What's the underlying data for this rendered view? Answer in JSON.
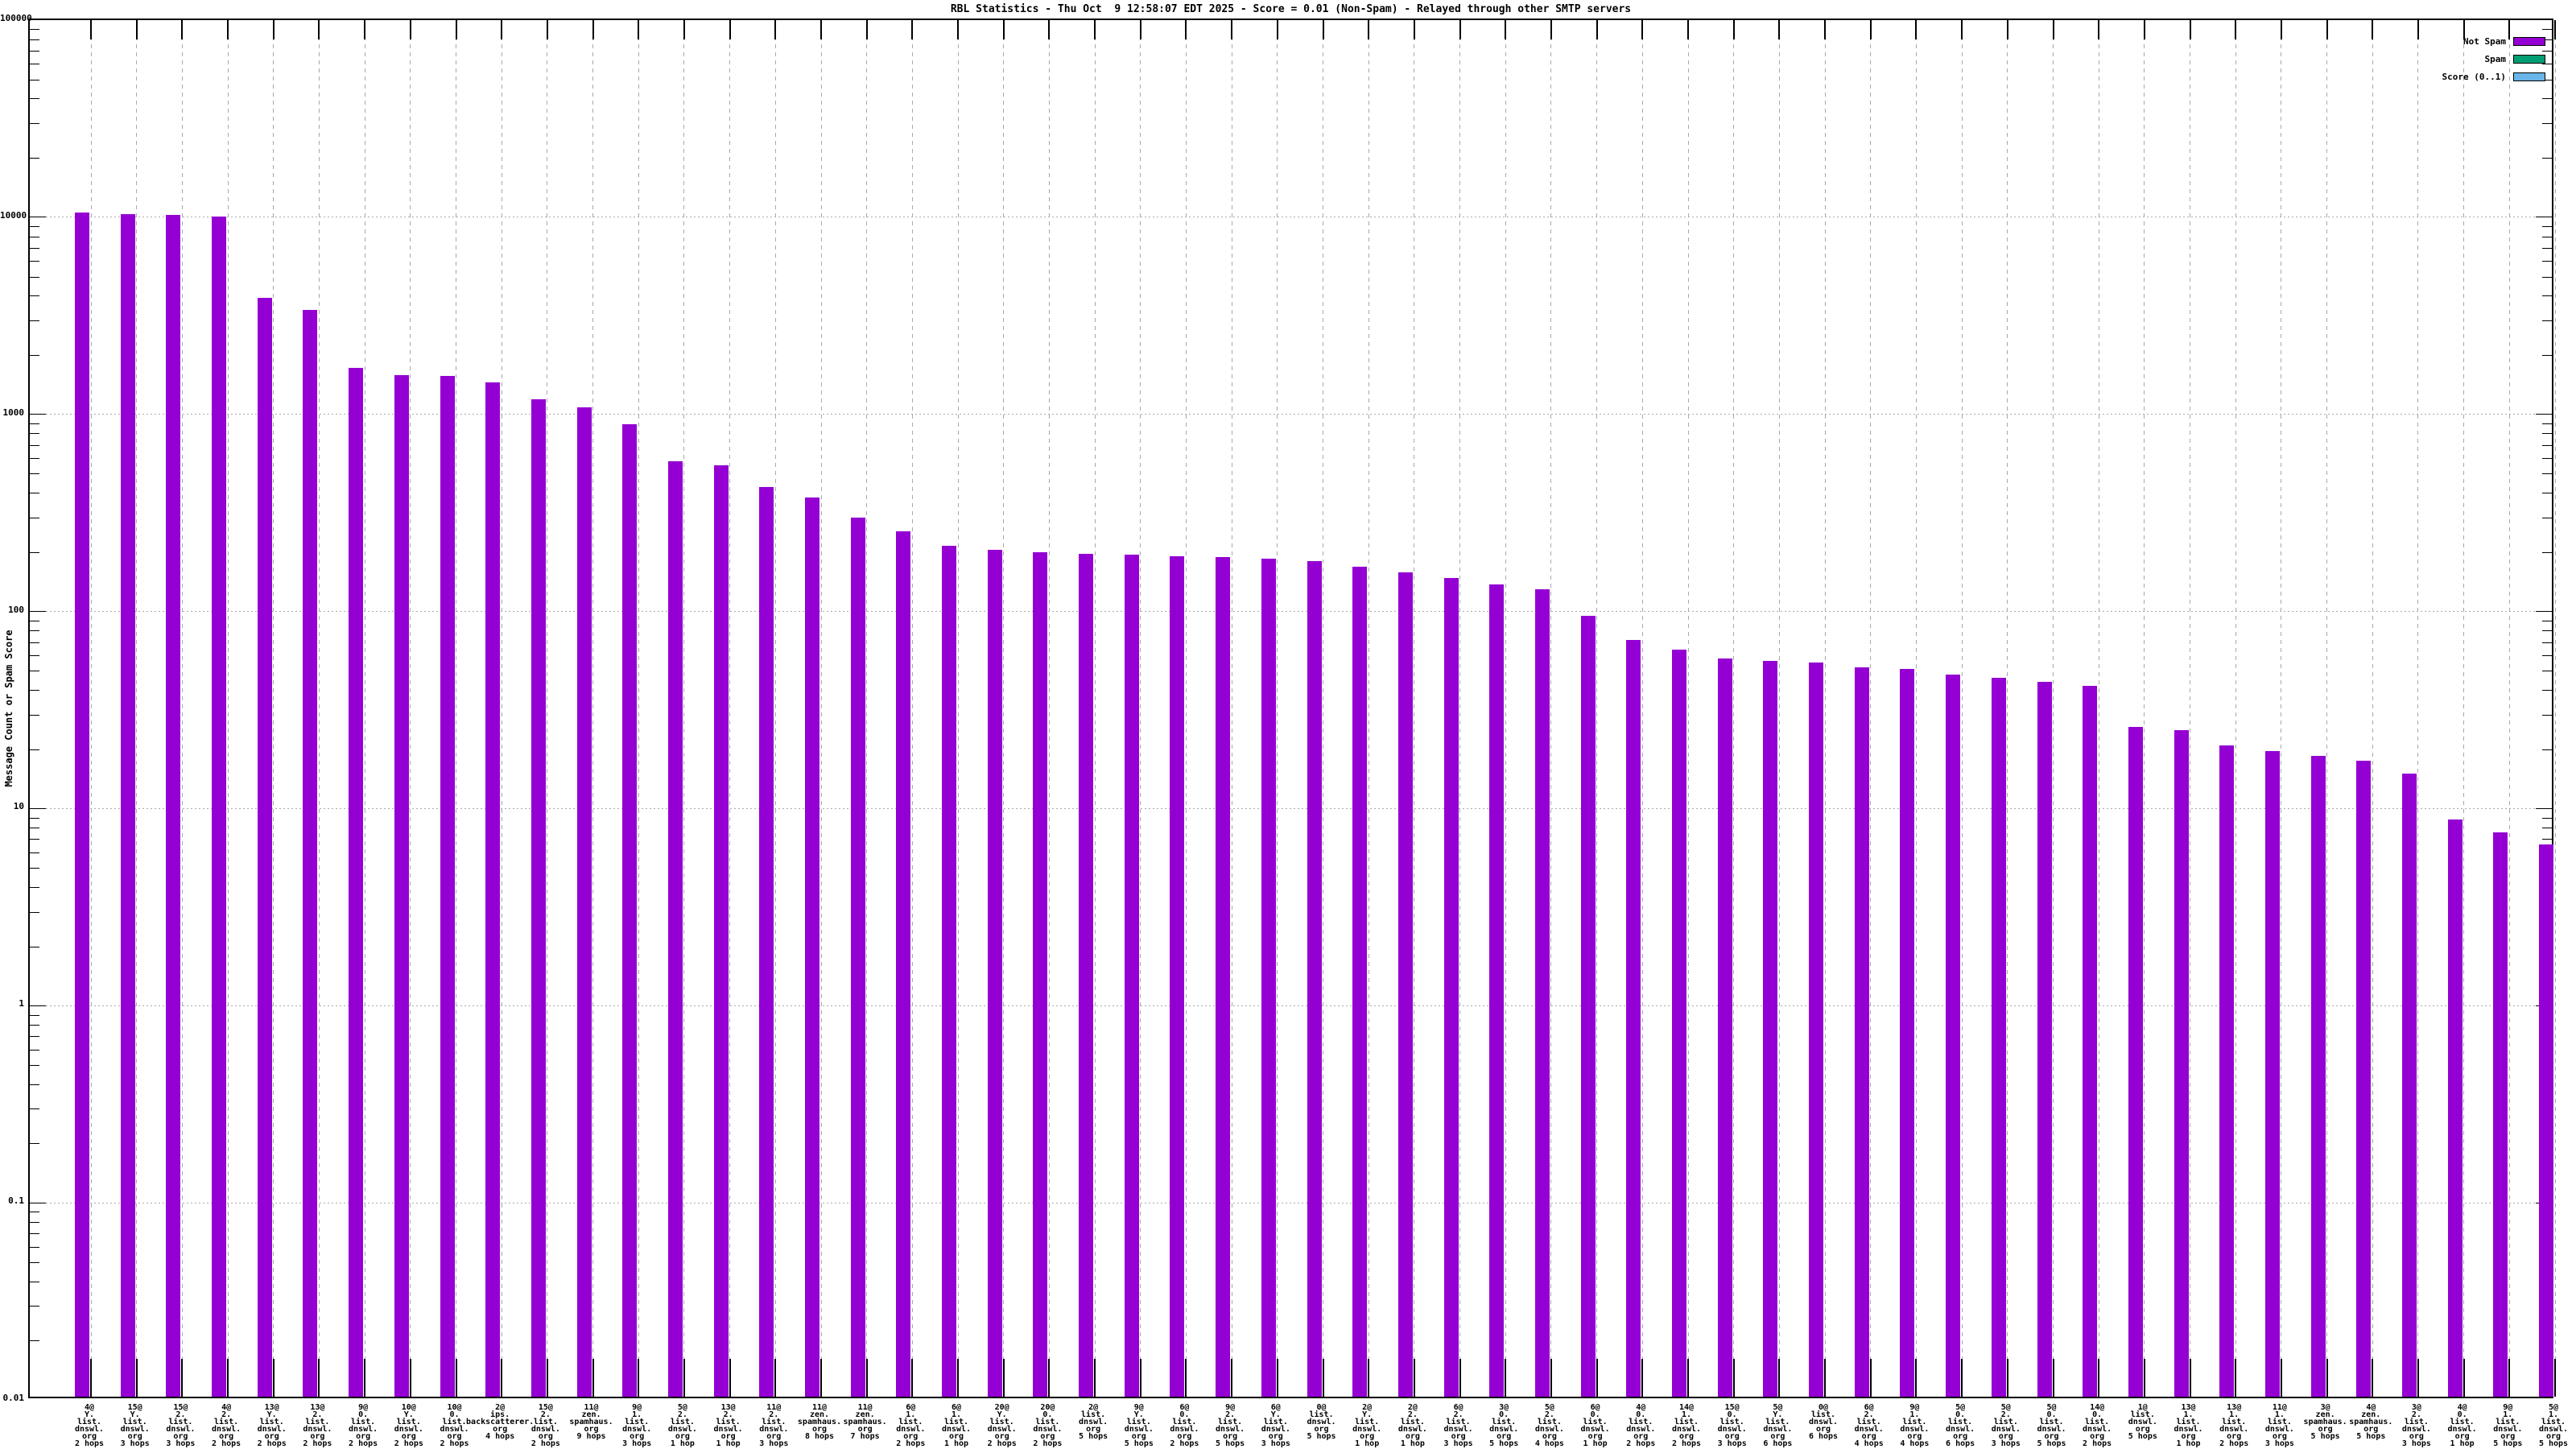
{
  "title": "RBL Statistics - Thu Oct  9 12:58:07 EDT 2025 - Score = 0.01 (Non-Spam) - Relayed through other SMTP servers",
  "ylabel": "Message Count or Spam Score",
  "legend": [
    {
      "label": "Not Spam",
      "color": "#9400d3"
    },
    {
      "label": "Spam",
      "color": "#009e73"
    },
    {
      "label": "Score (0..1)",
      "color": "#69b5e7"
    }
  ],
  "axes": {
    "y_ticks": [
      "100000",
      "10000",
      "1000",
      "100",
      "10",
      "1",
      "0.1",
      "0.01"
    ],
    "y_min": 0.01,
    "y_max": 100000,
    "y_scale": "log",
    "grid": true
  },
  "chart_data": {
    "type": "bar",
    "yscale": "log",
    "ylim": [
      0.01,
      100000
    ],
    "title": "RBL Statistics - Thu Oct  9 12:58:07 EDT 2025 - Score = 0.01 (Non-Spam) - Relayed through other SMTP servers",
    "ylabel": "Message Count or Spam Score",
    "legend_position": "top-right",
    "grid": true,
    "categories": [
      {
        "lines": [
          "4@",
          "Y.",
          "list.",
          "dnswl.",
          "org",
          "2 hops"
        ]
      },
      {
        "lines": [
          "15@",
          "Y.",
          "list.",
          "dnswl.",
          "org",
          "3 hops"
        ]
      },
      {
        "lines": [
          "15@",
          "2.",
          "list.",
          "dnswl.",
          "org",
          "3 hops"
        ]
      },
      {
        "lines": [
          "4@",
          "2.",
          "list.",
          "dnswl.",
          "org",
          "2 hops"
        ]
      },
      {
        "lines": [
          "13@",
          "Y.",
          "list.",
          "dnswl.",
          "org",
          "2 hops"
        ]
      },
      {
        "lines": [
          "13@",
          "2.",
          "list.",
          "dnswl.",
          "org",
          "2 hops"
        ]
      },
      {
        "lines": [
          "9@",
          "0.",
          "list.",
          "dnswl.",
          "org",
          "2 hops"
        ]
      },
      {
        "lines": [
          "10@",
          "Y.",
          "list.",
          "dnswl.",
          "org",
          "2 hops"
        ]
      },
      {
        "lines": [
          "10@",
          "0.",
          "list.",
          "dnswl.",
          "org",
          "2 hops"
        ]
      },
      {
        "lines": [
          "2@",
          "ips.",
          "backscatterer.",
          "org",
          "4 hops"
        ]
      },
      {
        "lines": [
          "15@",
          "2.",
          "list.",
          "dnswl.",
          "org",
          "2 hops"
        ]
      },
      {
        "lines": [
          "11@",
          "zen.",
          "spamhaus.",
          "org",
          "9 hops"
        ]
      },
      {
        "lines": [
          "9@",
          "1.",
          "list.",
          "dnswl.",
          "org",
          "3 hops"
        ]
      },
      {
        "lines": [
          "5@",
          "2.",
          "list.",
          "dnswl.",
          "org",
          "1 hop"
        ]
      },
      {
        "lines": [
          "13@",
          "2.",
          "list.",
          "dnswl.",
          "org",
          "1 hop"
        ]
      },
      {
        "lines": [
          "11@",
          "2.",
          "list.",
          "dnswl.",
          "org",
          "3 hops"
        ]
      },
      {
        "lines": [
          "11@",
          "zen.",
          "spamhaus.",
          "org",
          "8 hops"
        ]
      },
      {
        "lines": [
          "11@",
          "zen.",
          "spamhaus.",
          "org",
          "7 hops"
        ]
      },
      {
        "lines": [
          "6@",
          "1.",
          "list.",
          "dnswl.",
          "org",
          "2 hops"
        ]
      },
      {
        "lines": [
          "6@",
          "1.",
          "list.",
          "dnswl.",
          "org",
          "1 hop"
        ]
      },
      {
        "lines": [
          "20@",
          "Y.",
          "list.",
          "dnswl.",
          "org",
          "2 hops"
        ]
      },
      {
        "lines": [
          "20@",
          "0.",
          "list.",
          "dnswl.",
          "org",
          "2 hops"
        ]
      },
      {
        "lines": [
          "2@",
          "list.",
          "dnswl.",
          "org",
          "5 hops"
        ]
      },
      {
        "lines": [
          "9@",
          "Y.",
          "list.",
          "dnswl.",
          "org",
          "5 hops"
        ]
      },
      {
        "lines": [
          "6@",
          "0.",
          "list.",
          "dnswl.",
          "org",
          "2 hops"
        ]
      },
      {
        "lines": [
          "9@",
          "2.",
          "list.",
          "dnswl.",
          "org",
          "5 hops"
        ]
      },
      {
        "lines": [
          "6@",
          "Y.",
          "list.",
          "dnswl.",
          "org",
          "3 hops"
        ]
      },
      {
        "lines": [
          "0@",
          "list.",
          "dnswl.",
          "org",
          "5 hops"
        ]
      },
      {
        "lines": [
          "2@",
          "Y.",
          "list.",
          "dnswl.",
          "org",
          "1 hop"
        ]
      },
      {
        "lines": [
          "2@",
          "2.",
          "list.",
          "dnswl.",
          "org",
          "1 hop"
        ]
      },
      {
        "lines": [
          "6@",
          "2.",
          "list.",
          "dnswl.",
          "org",
          "3 hops"
        ]
      },
      {
        "lines": [
          "3@",
          "0.",
          "list.",
          "dnswl.",
          "org",
          "5 hops"
        ]
      },
      {
        "lines": [
          "5@",
          "2.",
          "list.",
          "dnswl.",
          "org",
          "4 hops"
        ]
      },
      {
        "lines": [
          "6@",
          "0.",
          "list.",
          "dnswl.",
          "org",
          "1 hop"
        ]
      },
      {
        "lines": [
          "4@",
          "0.",
          "list.",
          "dnswl.",
          "org",
          "2 hops"
        ]
      },
      {
        "lines": [
          "14@",
          "1.",
          "list.",
          "dnswl.",
          "org",
          "2 hops"
        ]
      },
      {
        "lines": [
          "15@",
          "0.",
          "list.",
          "dnswl.",
          "org",
          "3 hops"
        ]
      },
      {
        "lines": [
          "5@",
          "Y.",
          "list.",
          "dnswl.",
          "org",
          "6 hops"
        ]
      },
      {
        "lines": [
          "0@",
          "list.",
          "dnswl.",
          "org",
          "6 hops"
        ]
      },
      {
        "lines": [
          "6@",
          "2.",
          "list.",
          "dnswl.",
          "org",
          "4 hops"
        ]
      },
      {
        "lines": [
          "9@",
          "1.",
          "list.",
          "dnswl.",
          "org",
          "4 hops"
        ]
      },
      {
        "lines": [
          "5@",
          "0.",
          "list.",
          "dnswl.",
          "org",
          "6 hops"
        ]
      },
      {
        "lines": [
          "5@",
          "2.",
          "list.",
          "dnswl.",
          "org",
          "3 hops"
        ]
      },
      {
        "lines": [
          "5@",
          "0.",
          "list.",
          "dnswl.",
          "org",
          "5 hops"
        ]
      },
      {
        "lines": [
          "14@",
          "0.",
          "list.",
          "dnswl.",
          "org",
          "2 hops"
        ]
      },
      {
        "lines": [
          "1@",
          "list.",
          "dnswl.",
          "org",
          "5 hops"
        ]
      },
      {
        "lines": [
          "13@",
          "1.",
          "list.",
          "dnswl.",
          "org",
          "1 hop"
        ]
      },
      {
        "lines": [
          "13@",
          "1.",
          "list.",
          "dnswl.",
          "org",
          "2 hops"
        ]
      },
      {
        "lines": [
          "11@",
          "1.",
          "list.",
          "dnswl.",
          "org",
          "3 hops"
        ]
      },
      {
        "lines": [
          "3@",
          "zen.",
          "spamhaus.",
          "org",
          "5 hops"
        ]
      },
      {
        "lines": [
          "4@",
          "zen.",
          "spamhaus.",
          "org",
          "5 hops"
        ]
      },
      {
        "lines": [
          "3@",
          "2.",
          "list.",
          "dnswl.",
          "org",
          "3 hops"
        ]
      },
      {
        "lines": [
          "4@",
          "0.",
          "list.",
          "dnswl.",
          "org",
          "1 hop"
        ]
      },
      {
        "lines": [
          "9@",
          "1.",
          "list.",
          "dnswl.",
          "org",
          "5 hops"
        ]
      },
      {
        "lines": [
          "5@",
          "1.",
          "list.",
          "dnswl.",
          "org",
          "5 hops"
        ]
      }
    ],
    "series": [
      {
        "name": "Not Spam",
        "color": "#9400d3",
        "values": [
          10600,
          10400,
          10250,
          10100,
          3900,
          3400,
          1720,
          1580,
          1560,
          1450,
          1190,
          1090,
          890,
          580,
          550,
          430,
          380,
          300,
          255,
          215,
          205,
          200,
          197,
          194,
          191,
          188,
          185,
          180,
          168,
          158,
          148,
          137,
          130,
          95,
          72,
          64,
          58,
          56,
          55,
          52,
          51,
          48,
          46,
          44,
          42,
          26,
          25,
          21,
          19.5,
          18.5,
          17.5,
          15,
          8.8,
          7.6,
          6.6
        ]
      },
      {
        "name": "Spam",
        "color": "#009e73",
        "values": []
      },
      {
        "name": "Score (0..1)",
        "color": "#69b5e7",
        "values": []
      }
    ]
  }
}
